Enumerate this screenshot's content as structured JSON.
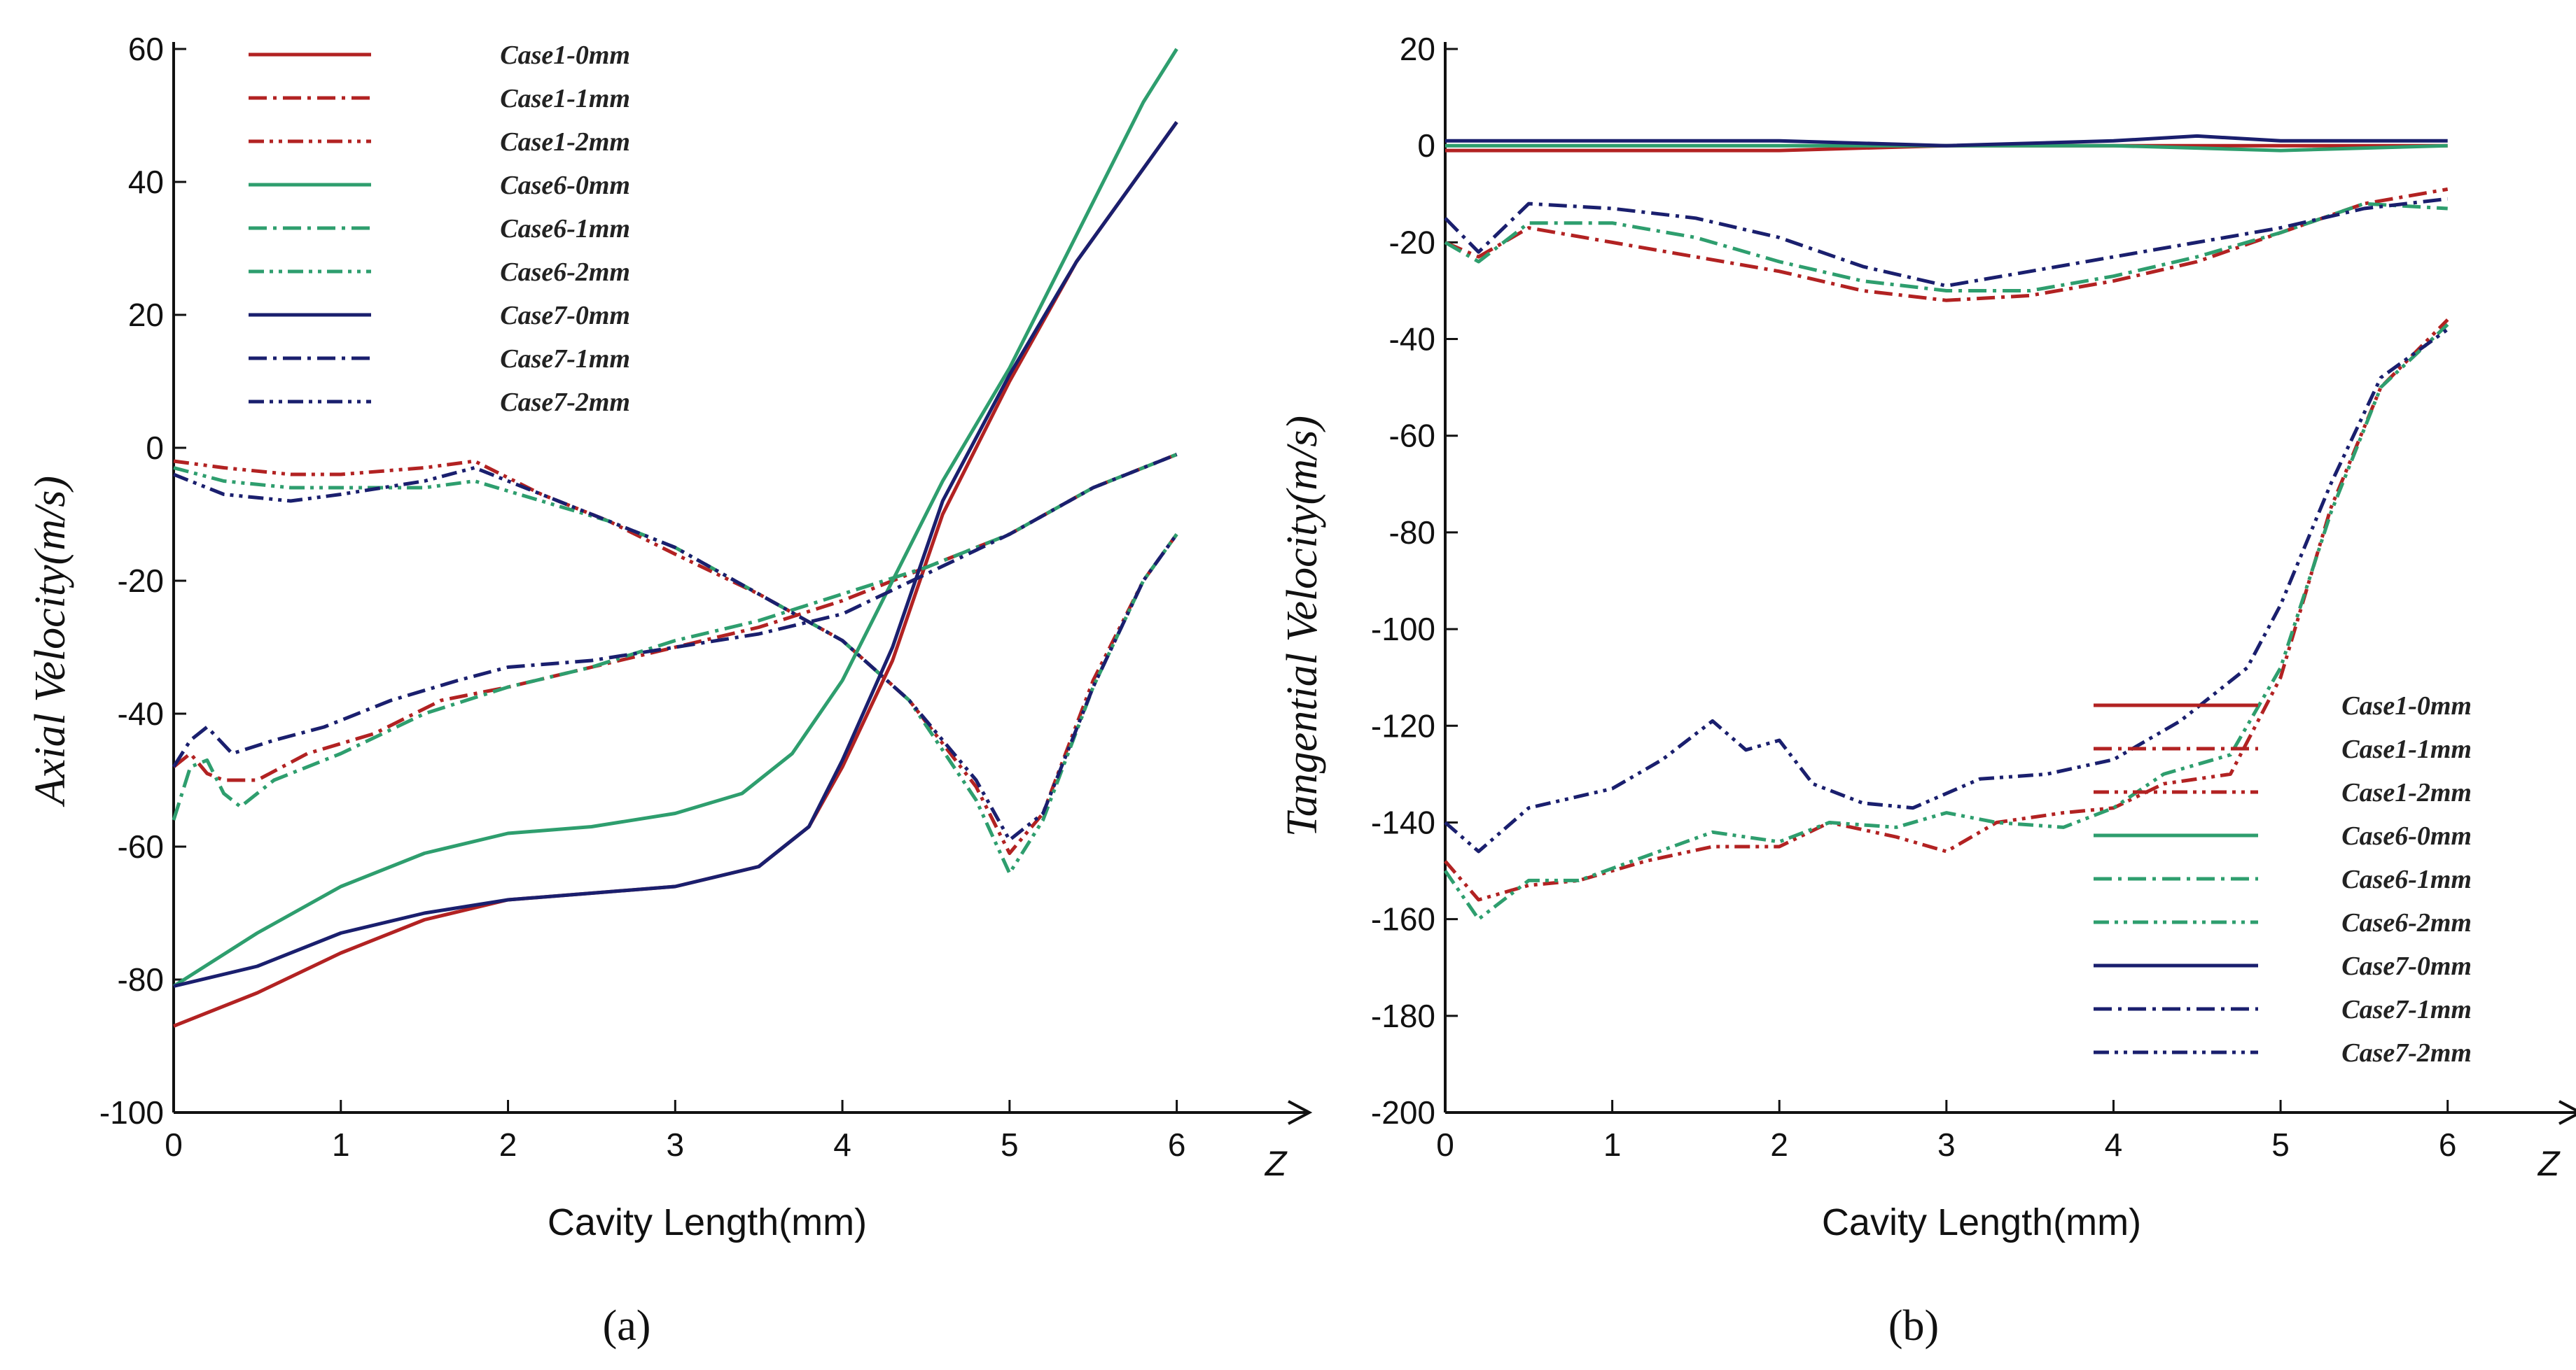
{
  "colors": {
    "case1": "#b22222",
    "case6": "#2e9e6e",
    "case7": "#1a1f6e",
    "axis": "#111111"
  },
  "chart_data": [
    {
      "type": "line",
      "panel_caption": "(a)",
      "xlabel": "Cavity Length(mm)",
      "ylabel": "Axial Velocity(m/s)",
      "axis_end_label": "Z",
      "xlim": [
        0,
        6.5
      ],
      "ylim": [
        -100,
        60
      ],
      "xticks": [
        0,
        1,
        2,
        3,
        4,
        5,
        6
      ],
      "yticks": [
        -100,
        -80,
        -60,
        -40,
        -20,
        0,
        20,
        40,
        60
      ],
      "legend": [
        "Case1-0mm",
        "Case1-1mm",
        "Case1-2mm",
        "Case6-0mm",
        "Case6-1mm",
        "Case6-2mm",
        "Case7-0mm",
        "Case7-1mm",
        "Case7-2mm"
      ],
      "legend_position": "top-left",
      "series": [
        {
          "name": "Case1-0mm",
          "color_key": "case1",
          "style": "solid",
          "x": [
            0,
            0.5,
            1,
            1.5,
            2,
            2.5,
            3,
            3.5,
            3.8,
            4,
            4.3,
            4.6,
            5,
            5.4,
            5.8,
            6
          ],
          "y": [
            -87,
            -82,
            -76,
            -71,
            -68,
            -67,
            -66,
            -63,
            -57,
            -48,
            -32,
            -10,
            10,
            28,
            42,
            49
          ]
        },
        {
          "name": "Case1-1mm",
          "color_key": "case1",
          "style": "dashdot",
          "x": [
            0,
            0.1,
            0.2,
            0.3,
            0.5,
            0.8,
            1.2,
            1.6,
            2,
            2.5,
            3,
            3.5,
            4,
            4.5,
            5,
            5.5,
            6
          ],
          "y": [
            -48,
            -46,
            -49,
            -50,
            -50,
            -46,
            -43,
            -38,
            -36,
            -33,
            -30,
            -27,
            -23,
            -18,
            -13,
            -6,
            -1
          ]
        },
        {
          "name": "Case1-2mm",
          "color_key": "case1",
          "style": "dashdotdot",
          "x": [
            0,
            0.3,
            0.7,
            1,
            1.5,
            1.8,
            2.2,
            2.6,
            3,
            3.5,
            4,
            4.4,
            4.8,
            5,
            5.2,
            5.5,
            5.8,
            6
          ],
          "y": [
            -2,
            -3,
            -4,
            -4,
            -3,
            -2,
            -7,
            -11,
            -16,
            -22,
            -29,
            -38,
            -51,
            -61,
            -55,
            -35,
            -20,
            -13
          ]
        },
        {
          "name": "Case6-0mm",
          "color_key": "case6",
          "style": "solid",
          "x": [
            0,
            0.5,
            1,
            1.5,
            2,
            2.5,
            3,
            3.4,
            3.7,
            4,
            4.3,
            4.6,
            5,
            5.4,
            5.8,
            6
          ],
          "y": [
            -81,
            -73,
            -66,
            -61,
            -58,
            -57,
            -55,
            -52,
            -46,
            -35,
            -20,
            -5,
            12,
            32,
            52,
            60
          ]
        },
        {
          "name": "Case6-1mm",
          "color_key": "case6",
          "style": "dashdot",
          "x": [
            0,
            0.1,
            0.2,
            0.3,
            0.4,
            0.6,
            1,
            1.5,
            2,
            2.5,
            3,
            3.5,
            4,
            4.5,
            5,
            5.5,
            6
          ],
          "y": [
            -56,
            -48,
            -47,
            -52,
            -54,
            -50,
            -46,
            -40,
            -36,
            -33,
            -29,
            -26,
            -22,
            -18,
            -13,
            -6,
            -1
          ]
        },
        {
          "name": "Case6-2mm",
          "color_key": "case6",
          "style": "dashdotdot",
          "x": [
            0,
            0.3,
            0.7,
            1,
            1.5,
            1.8,
            2.2,
            2.6,
            3,
            3.5,
            4,
            4.4,
            4.8,
            5,
            5.2,
            5.5,
            5.8,
            6
          ],
          "y": [
            -3,
            -5,
            -6,
            -6,
            -6,
            -5,
            -8,
            -11,
            -15,
            -22,
            -29,
            -38,
            -53,
            -64,
            -56,
            -36,
            -20,
            -13
          ]
        },
        {
          "name": "Case7-0mm",
          "color_key": "case7",
          "style": "solid",
          "x": [
            0,
            0.5,
            1,
            1.5,
            2,
            2.5,
            3,
            3.5,
            3.8,
            4,
            4.3,
            4.6,
            5,
            5.4,
            5.8,
            6
          ],
          "y": [
            -81,
            -78,
            -73,
            -70,
            -68,
            -67,
            -66,
            -63,
            -57,
            -47,
            -30,
            -8,
            11,
            28,
            42,
            49
          ]
        },
        {
          "name": "Case7-1mm",
          "color_key": "case7",
          "style": "dashdot",
          "x": [
            0,
            0.1,
            0.2,
            0.35,
            0.6,
            0.9,
            1.3,
            1.7,
            2,
            2.5,
            3,
            3.5,
            4,
            4.5,
            5,
            5.5,
            6
          ],
          "y": [
            -48,
            -44,
            -42,
            -46,
            -44,
            -42,
            -38,
            -35,
            -33,
            -32,
            -30,
            -28,
            -25,
            -19,
            -13,
            -6,
            -1
          ]
        },
        {
          "name": "Case7-2mm",
          "color_key": "case7",
          "style": "dashdotdot",
          "x": [
            0,
            0.3,
            0.7,
            1,
            1.5,
            1.8,
            2.2,
            2.6,
            3,
            3.5,
            4,
            4.4,
            4.8,
            5,
            5.2,
            5.5,
            5.8,
            6
          ],
          "y": [
            -4,
            -7,
            -8,
            -7,
            -5,
            -3,
            -7,
            -11,
            -15,
            -22,
            -29,
            -38,
            -50,
            -59,
            -55,
            -36,
            -20,
            -13
          ]
        }
      ]
    },
    {
      "type": "line",
      "panel_caption": "(b)",
      "xlabel": "Cavity Length(mm)",
      "ylabel": "Tangential Velocity(m/s)",
      "axis_end_label": "Z",
      "xlim": [
        0,
        6.5
      ],
      "ylim": [
        -200,
        20
      ],
      "xticks": [
        0,
        1,
        2,
        3,
        4,
        5,
        6
      ],
      "yticks": [
        -200,
        -180,
        -160,
        -140,
        -120,
        -100,
        -80,
        -60,
        -40,
        -20,
        0,
        20
      ],
      "legend": [
        "Case1-0mm",
        "Case1-1mm",
        "Case1-2mm",
        "Case6-0mm",
        "Case6-1mm",
        "Case6-2mm",
        "Case7-0mm",
        "Case7-1mm",
        "Case7-2mm"
      ],
      "legend_position": "bottom-right",
      "series": [
        {
          "name": "Case1-0mm",
          "color_key": "case1",
          "style": "solid",
          "x": [
            0,
            1,
            2,
            3,
            4,
            5,
            6
          ],
          "y": [
            -1,
            -1,
            -1,
            0,
            0,
            0,
            0
          ]
        },
        {
          "name": "Case1-1mm",
          "color_key": "case1",
          "style": "dashdot",
          "x": [
            0,
            0.2,
            0.5,
            1,
            1.5,
            2,
            2.5,
            3,
            3.5,
            4,
            4.5,
            5,
            5.5,
            6
          ],
          "y": [
            -20,
            -23,
            -17,
            -20,
            -23,
            -26,
            -30,
            -32,
            -31,
            -28,
            -24,
            -18,
            -12,
            -9
          ]
        },
        {
          "name": "Case1-2mm",
          "color_key": "case1",
          "style": "dashdotdot",
          "x": [
            0,
            0.2,
            0.5,
            0.8,
            1.2,
            1.6,
            2,
            2.3,
            2.7,
            3,
            3.3,
            3.7,
            4,
            4.3,
            4.7,
            5,
            5.3,
            5.6,
            6
          ],
          "y": [
            -148,
            -156,
            -153,
            -152,
            -148,
            -145,
            -145,
            -140,
            -143,
            -146,
            -140,
            -138,
            -137,
            -132,
            -130,
            -110,
            -75,
            -50,
            -36
          ]
        },
        {
          "name": "Case6-0mm",
          "color_key": "case6",
          "style": "solid",
          "x": [
            0,
            1,
            2,
            3,
            4,
            5,
            6
          ],
          "y": [
            0,
            0,
            0,
            0,
            0,
            -1,
            0
          ]
        },
        {
          "name": "Case6-1mm",
          "color_key": "case6",
          "style": "dashdot",
          "x": [
            0,
            0.2,
            0.5,
            1,
            1.5,
            2,
            2.5,
            3,
            3.5,
            4,
            4.5,
            5,
            5.5,
            6
          ],
          "y": [
            -20,
            -24,
            -16,
            -16,
            -19,
            -24,
            -28,
            -30,
            -30,
            -27,
            -23,
            -18,
            -12,
            -13
          ]
        },
        {
          "name": "Case6-2mm",
          "color_key": "case6",
          "style": "dashdotdot",
          "x": [
            0,
            0.2,
            0.5,
            0.8,
            1.2,
            1.6,
            2,
            2.3,
            2.7,
            3,
            3.3,
            3.7,
            4,
            4.3,
            4.7,
            5,
            5.3,
            5.6,
            6
          ],
          "y": [
            -150,
            -160,
            -152,
            -152,
            -147,
            -142,
            -144,
            -140,
            -141,
            -138,
            -140,
            -141,
            -137,
            -130,
            -126,
            -108,
            -76,
            -50,
            -37
          ]
        },
        {
          "name": "Case7-0mm",
          "color_key": "case7",
          "style": "solid",
          "x": [
            0,
            1,
            2,
            3,
            4,
            4.5,
            5,
            6
          ],
          "y": [
            1,
            1,
            1,
            0,
            1,
            2,
            1,
            1
          ]
        },
        {
          "name": "Case7-1mm",
          "color_key": "case7",
          "style": "dashdot",
          "x": [
            0,
            0.2,
            0.5,
            1,
            1.5,
            2,
            2.5,
            3,
            3.5,
            4,
            4.5,
            5,
            5.5,
            6
          ],
          "y": [
            -15,
            -22,
            -12,
            -13,
            -15,
            -19,
            -25,
            -29,
            -26,
            -23,
            -20,
            -17,
            -13,
            -11
          ]
        },
        {
          "name": "Case7-2mm",
          "color_key": "case7",
          "style": "dashdotdot",
          "x": [
            0,
            0.2,
            0.5,
            1,
            1.3,
            1.6,
            1.8,
            2,
            2.2,
            2.5,
            2.8,
            3.2,
            3.6,
            4,
            4.4,
            4.8,
            5,
            5.3,
            5.6,
            6
          ],
          "y": [
            -140,
            -146,
            -137,
            -133,
            -127,
            -119,
            -125,
            -123,
            -132,
            -136,
            -137,
            -131,
            -130,
            -127,
            -119,
            -108,
            -95,
            -70,
            -48,
            -38
          ]
        }
      ]
    }
  ]
}
